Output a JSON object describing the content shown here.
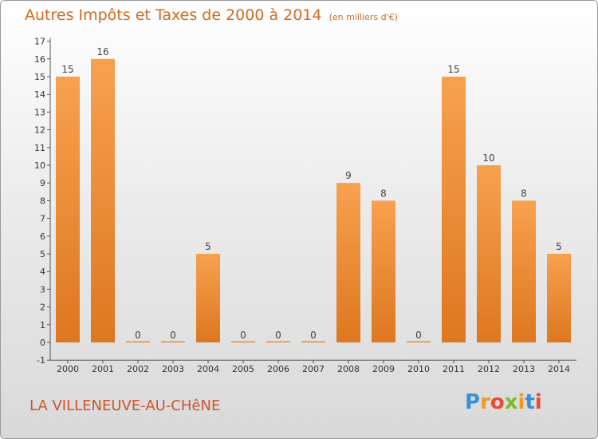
{
  "chart_data": {
    "type": "bar",
    "title": "Autres Impôts et Taxes de 2000 à 2014",
    "unit_label": "(en milliers d'€)",
    "xlabel": "",
    "ylabel": "",
    "categories": [
      "2000",
      "2001",
      "2002",
      "2003",
      "2004",
      "2005",
      "2006",
      "2007",
      "2008",
      "2009",
      "2010",
      "2011",
      "2012",
      "2013",
      "2014"
    ],
    "values": [
      15,
      16,
      0,
      0,
      5,
      0,
      0,
      0,
      9,
      8,
      0,
      15,
      10,
      8,
      5
    ],
    "data_labels": [
      "15",
      "16",
      "0",
      "0",
      "5",
      "0",
      "0",
      "0",
      "9",
      "8",
      "0",
      "15",
      "10",
      "8",
      "5"
    ],
    "yticks": [
      "-1",
      "0",
      "1",
      "2",
      "3",
      "4",
      "5",
      "6",
      "7",
      "8",
      "9",
      "10",
      "11",
      "12",
      "13",
      "14",
      "15",
      "16",
      "17"
    ],
    "ylim": [
      -1,
      17
    ],
    "grid": false,
    "legend": "none",
    "bar_color": "#f0943c"
  },
  "footer": {
    "commune": "LA VILLENEUVE-AU-CHêNE",
    "logo_text": "Proxiti"
  }
}
